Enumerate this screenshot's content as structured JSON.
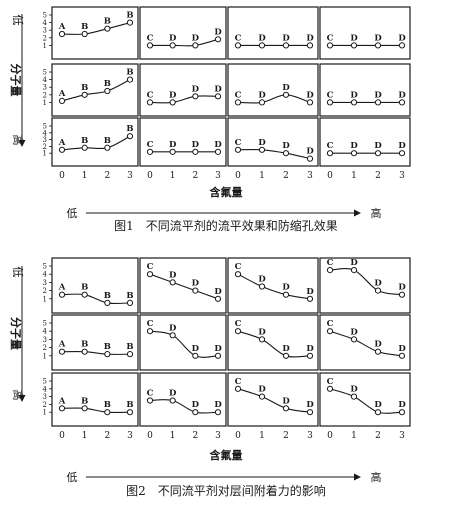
{
  "figures": [
    {
      "id": "fig1",
      "caption": "图1　不同流平剂的流平效果和防缩孔效果",
      "y_axis_label": "分子量",
      "y_low_label": "低",
      "y_high_label": "高",
      "x_axis_label": "含氟量",
      "x_low_label": "低",
      "x_high_label": "高"
    },
    {
      "id": "fig2",
      "caption": "图2　不同流平剂对层间附着力的影响",
      "y_axis_label": "分子量",
      "y_low_label": "低",
      "y_high_label": "高",
      "x_axis_label": "含氟量",
      "x_low_label": "低",
      "x_high_label": "高"
    }
  ],
  "chart_data": [
    {
      "type": "line",
      "figure": "fig1",
      "x": [
        0,
        1,
        2,
        3
      ],
      "x_tick_labels": [
        "0",
        "1",
        "2",
        "3"
      ],
      "y_tick_labels": [
        "1",
        "2",
        "3",
        "4",
        "5"
      ],
      "ylim": [
        0,
        5
      ],
      "grid_rows": 3,
      "grid_cols": 4,
      "panels": [
        {
          "row": 0,
          "col": 0,
          "values": [
            2.5,
            2.5,
            3.2,
            4
          ],
          "labels": [
            "A",
            "B",
            "B",
            "B"
          ]
        },
        {
          "row": 0,
          "col": 1,
          "values": [
            1,
            1,
            1,
            1.8
          ],
          "labels": [
            "C",
            "D",
            "D",
            "D"
          ]
        },
        {
          "row": 0,
          "col": 2,
          "values": [
            1,
            1,
            1,
            1
          ],
          "labels": [
            "C",
            "D",
            "D",
            "D"
          ]
        },
        {
          "row": 0,
          "col": 3,
          "values": [
            1,
            1,
            1,
            1
          ],
          "labels": [
            "C",
            "D",
            "D",
            "D"
          ]
        },
        {
          "row": 1,
          "col": 0,
          "values": [
            1.2,
            2,
            2.5,
            4
          ],
          "labels": [
            "A",
            "B",
            "B",
            "B"
          ]
        },
        {
          "row": 1,
          "col": 1,
          "values": [
            1,
            1,
            1.8,
            1.8
          ],
          "labels": [
            "C",
            "D",
            "D",
            "D"
          ]
        },
        {
          "row": 1,
          "col": 2,
          "values": [
            1,
            1,
            2,
            1
          ],
          "labels": [
            "C",
            "D",
            "D",
            "D"
          ]
        },
        {
          "row": 1,
          "col": 3,
          "values": [
            1,
            1,
            1,
            1
          ],
          "labels": [
            "C",
            "D",
            "D",
            "D"
          ]
        },
        {
          "row": 2,
          "col": 0,
          "values": [
            1.5,
            1.8,
            1.8,
            3.5
          ],
          "labels": [
            "A",
            "B",
            "B",
            "B"
          ]
        },
        {
          "row": 2,
          "col": 1,
          "values": [
            1.2,
            1.2,
            1.2,
            1.2
          ],
          "labels": [
            "C",
            "D",
            "D",
            "D"
          ]
        },
        {
          "row": 2,
          "col": 2,
          "values": [
            1.5,
            1.5,
            1,
            0.2
          ],
          "labels": [
            "C",
            "D",
            "D",
            "D"
          ]
        },
        {
          "row": 2,
          "col": 3,
          "values": [
            1,
            1,
            1,
            1
          ],
          "labels": [
            "C",
            "D",
            "D",
            "D"
          ]
        }
      ]
    },
    {
      "type": "line",
      "figure": "fig2",
      "x": [
        0,
        1,
        2,
        3
      ],
      "x_tick_labels": [
        "0",
        "1",
        "2",
        "3"
      ],
      "y_tick_labels": [
        "1",
        "2",
        "3",
        "4",
        "5"
      ],
      "ylim": [
        0,
        5
      ],
      "grid_rows": 3,
      "grid_cols": 4,
      "panels": [
        {
          "row": 0,
          "col": 0,
          "values": [
            1.5,
            1.5,
            0.5,
            0.5
          ],
          "labels": [
            "A",
            "B",
            "B",
            "B"
          ]
        },
        {
          "row": 0,
          "col": 1,
          "values": [
            4,
            3,
            2,
            1
          ],
          "labels": [
            "C",
            "D",
            "D",
            "D"
          ]
        },
        {
          "row": 0,
          "col": 2,
          "values": [
            4,
            2.5,
            1.5,
            1
          ],
          "labels": [
            "C",
            "D",
            "D",
            "D"
          ]
        },
        {
          "row": 0,
          "col": 3,
          "values": [
            4.5,
            4.5,
            2,
            1.5
          ],
          "labels": [
            "C",
            "D",
            "D",
            "D"
          ]
        },
        {
          "row": 1,
          "col": 0,
          "values": [
            1.5,
            1.5,
            1.2,
            1.2
          ],
          "labels": [
            "A",
            "B",
            "B",
            "B"
          ]
        },
        {
          "row": 1,
          "col": 1,
          "values": [
            4,
            3.5,
            1,
            1
          ],
          "labels": [
            "C",
            "D",
            "D",
            "D"
          ]
        },
        {
          "row": 1,
          "col": 2,
          "values": [
            4,
            3,
            1,
            1
          ],
          "labels": [
            "C",
            "D",
            "D",
            "D"
          ]
        },
        {
          "row": 1,
          "col": 3,
          "values": [
            4,
            3,
            1.5,
            1
          ],
          "labels": [
            "C",
            "D",
            "D",
            "D"
          ]
        },
        {
          "row": 2,
          "col": 0,
          "values": [
            1.5,
            1.5,
            1,
            1
          ],
          "labels": [
            "A",
            "B",
            "B",
            "B"
          ]
        },
        {
          "row": 2,
          "col": 1,
          "values": [
            2.5,
            2.5,
            1,
            1
          ],
          "labels": [
            "C",
            "D",
            "D",
            "D"
          ]
        },
        {
          "row": 2,
          "col": 2,
          "values": [
            4,
            3,
            1.5,
            1
          ],
          "labels": [
            "C",
            "D",
            "D",
            "D"
          ]
        },
        {
          "row": 2,
          "col": 3,
          "values": [
            4,
            3,
            1,
            1
          ],
          "labels": [
            "C",
            "D",
            "D",
            "D"
          ]
        }
      ]
    }
  ]
}
